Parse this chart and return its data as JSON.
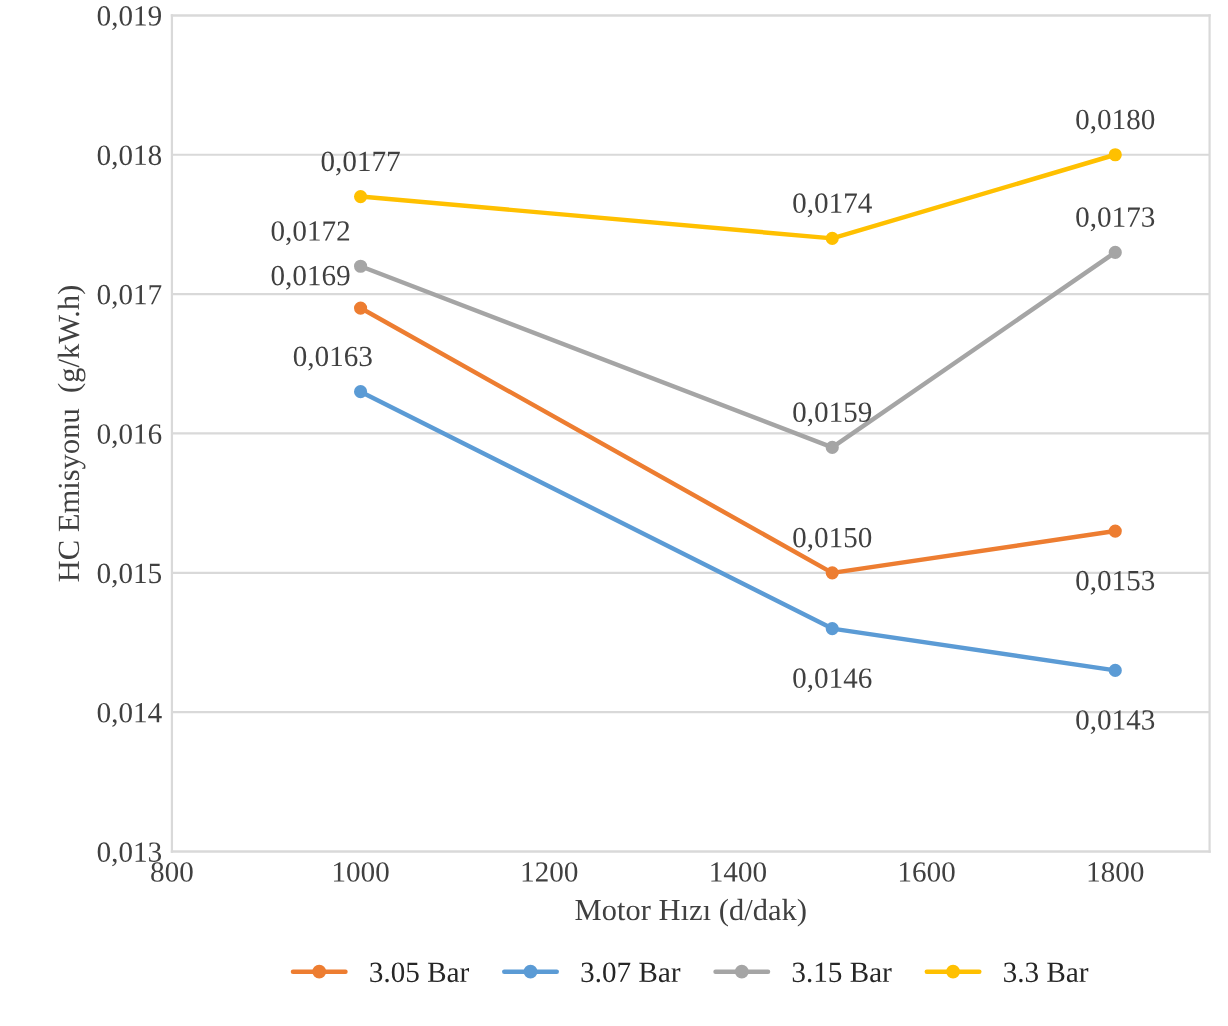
{
  "chart_data": {
    "type": "line",
    "xlabel": "Motor Hızı (d/dak)",
    "ylabel": "HC Emisyonu  (g/kW.h)",
    "x": [
      1000,
      1500,
      1800
    ],
    "xlim": [
      800,
      1900
    ],
    "xticks": [
      800,
      1000,
      1200,
      1400,
      1600,
      1800
    ],
    "ylim": [
      0.013,
      0.019
    ],
    "yticks": [
      {
        "value": 0.013,
        "label": "0,013"
      },
      {
        "value": 0.014,
        "label": "0,014"
      },
      {
        "value": 0.015,
        "label": "0,015"
      },
      {
        "value": 0.016,
        "label": "0,016"
      },
      {
        "value": 0.017,
        "label": "0,017"
      },
      {
        "value": 0.018,
        "label": "0,018"
      },
      {
        "value": 0.019,
        "label": "0,019"
      }
    ],
    "series": [
      {
        "name": "3.05 Bar",
        "color": "#ed7d31",
        "values": [
          0.0169,
          0.015,
          0.0153
        ],
        "value_labels": [
          "0,0169",
          "0,0150",
          "0,0153"
        ]
      },
      {
        "name": "3.07 Bar",
        "color": "#5b9bd5",
        "values": [
          0.0163,
          0.0146,
          0.0143
        ],
        "value_labels": [
          "0,0163",
          "0,0146",
          "0,0143"
        ]
      },
      {
        "name": "3.15 Bar",
        "color": "#a5a5a5",
        "values": [
          0.0172,
          0.0159,
          0.0173
        ],
        "value_labels": [
          "0,0172",
          "0,0159",
          "0,0173"
        ]
      },
      {
        "name": "3.3 Bar",
        "color": "#ffc000",
        "values": [
          0.0177,
          0.0174,
          0.018
        ],
        "value_labels": [
          "0,0177",
          "0,0174",
          "0,0180"
        ]
      }
    ],
    "grid": "y",
    "legend": "bottom",
    "marker": "circle",
    "line_style": "solid"
  }
}
